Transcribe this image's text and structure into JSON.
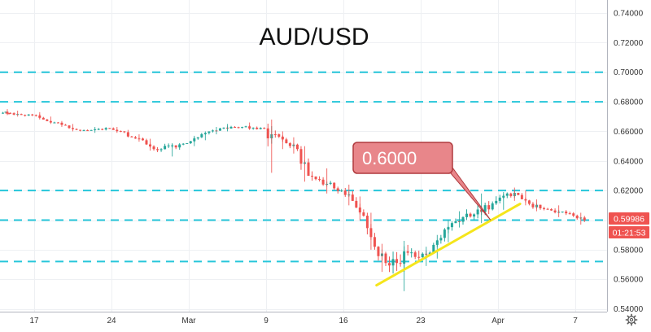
{
  "chart_data": {
    "type": "candlestick",
    "title": "AUD/USD",
    "xlabel": "",
    "ylabel": "",
    "ylim": [
      0.54,
      0.745
    ],
    "grid": true,
    "x_tick_labels": [
      "17",
      "24",
      "Mar",
      "9",
      "16",
      "23",
      "Apr",
      "7"
    ],
    "y_tick_labels": [
      "0.74000",
      "0.72000",
      "0.70000",
      "0.68000",
      "0.66000",
      "0.64000",
      "0.62000",
      "0.60000",
      "0.58000",
      "0.56000",
      "0.54000"
    ],
    "y_ticks": [
      0.74,
      0.72,
      0.7,
      0.68,
      0.66,
      0.64,
      0.62,
      0.6,
      0.58,
      0.56,
      0.54
    ],
    "horizontal_levels": [
      0.7,
      0.68,
      0.62,
      0.6,
      0.572
    ],
    "current_price": "0.59986",
    "countdown": "01:21:53",
    "annotation_text": "0.6000",
    "trendline": {
      "start": {
        "x": "Mar 19",
        "y": 0.556
      },
      "end": {
        "x": "Apr 1",
        "y": 0.611
      }
    },
    "series": [
      {
        "x": [
          "Feb 13",
          "Feb 14",
          "Feb 17",
          "Feb 18",
          "Feb 19",
          "Feb 20",
          "Feb 21",
          "Feb 24",
          "Feb 25",
          "Feb 26",
          "Feb 27",
          "Feb 28",
          "Mar 2",
          "Mar 3",
          "Mar 4",
          "Mar 5",
          "Mar 6",
          "Mar 9",
          "Mar 10",
          "Mar 11",
          "Mar 12",
          "Mar 13",
          "Mar 16",
          "Mar 17",
          "Mar 18",
          "Mar 19",
          "Mar 20",
          "Mar 23",
          "Mar 24",
          "Mar 25",
          "Mar 26",
          "Mar 27",
          "Mar 30",
          "Mar 31",
          "Apr 1",
          "Apr 2",
          "Apr 3",
          "Apr 6"
        ],
        "open": [
          0.673,
          0.672,
          0.671,
          0.668,
          0.666,
          0.664,
          0.661,
          0.662,
          0.66,
          0.656,
          0.654,
          0.648,
          0.652,
          0.656,
          0.66,
          0.662,
          0.663,
          0.662,
          0.658,
          0.652,
          0.648,
          0.63,
          0.62,
          0.613,
          0.603,
          0.582,
          0.571,
          0.575,
          0.578,
          0.588,
          0.598,
          0.602,
          0.613,
          0.618,
          0.617,
          0.611,
          0.608,
          0.603
        ],
        "high": [
          0.675,
          0.674,
          0.673,
          0.67,
          0.667,
          0.665,
          0.663,
          0.663,
          0.661,
          0.658,
          0.655,
          0.652,
          0.657,
          0.66,
          0.663,
          0.665,
          0.666,
          0.668,
          0.66,
          0.656,
          0.65,
          0.635,
          0.624,
          0.616,
          0.605,
          0.584,
          0.586,
          0.582,
          0.59,
          0.6,
          0.606,
          0.618,
          0.619,
          0.622,
          0.62,
          0.614,
          0.61,
          0.605
        ],
        "low": [
          0.671,
          0.67,
          0.668,
          0.665,
          0.663,
          0.66,
          0.659,
          0.659,
          0.656,
          0.653,
          0.647,
          0.643,
          0.65,
          0.654,
          0.658,
          0.66,
          0.661,
          0.632,
          0.648,
          0.645,
          0.626,
          0.618,
          0.61,
          0.6,
          0.58,
          0.565,
          0.552,
          0.569,
          0.574,
          0.585,
          0.595,
          0.598,
          0.607,
          0.613,
          0.61,
          0.606,
          0.602,
          0.597
        ],
        "close": [
          0.672,
          0.671,
          0.668,
          0.666,
          0.664,
          0.661,
          0.662,
          0.66,
          0.656,
          0.654,
          0.648,
          0.652,
          0.656,
          0.66,
          0.662,
          0.663,
          0.662,
          0.658,
          0.652,
          0.648,
          0.63,
          0.62,
          0.613,
          0.603,
          0.582,
          0.571,
          0.575,
          0.578,
          0.588,
          0.598,
          0.602,
          0.613,
          0.618,
          0.617,
          0.611,
          0.608,
          0.603,
          0.59986
        ]
      }
    ]
  },
  "colors": {
    "up": "#26a69a",
    "down": "#ef5350",
    "level_line": "#26c6da",
    "trendline": "#f5e51b",
    "annotation_fill": "#e8868a",
    "annotation_stroke": "#b03a3e",
    "price_badge": "#ef5350"
  },
  "icons": {
    "settings": "gear-icon"
  }
}
